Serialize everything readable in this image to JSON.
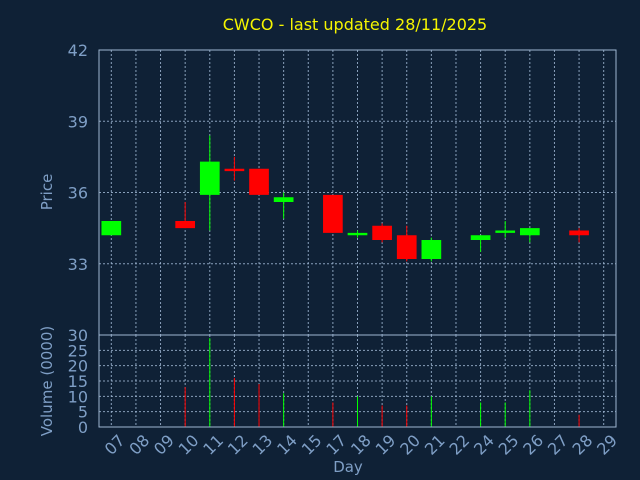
{
  "chart_data": {
    "type": "candlestick",
    "title": "CWCO - last updated 28/11/2025",
    "xlabel": "Day",
    "price_panel": {
      "ylabel": "Price",
      "ylim": [
        30,
        42
      ],
      "yticks": [
        "30",
        "33",
        "36",
        "39",
        "42"
      ],
      "grid": true
    },
    "volume_panel": {
      "ylabel": "Volume (0000)",
      "ylim": [
        0,
        30
      ],
      "yticks": [
        "0",
        "5",
        "10",
        "15",
        "20",
        "25"
      ],
      "grid": true
    },
    "x_ticks": [
      "07",
      "08",
      "09",
      "10",
      "11",
      "12",
      "13",
      "14",
      "15",
      "17",
      "18",
      "19",
      "20",
      "21",
      "22",
      "24",
      "25",
      "26",
      "27",
      "28",
      "29"
    ],
    "candles": [
      {
        "day": "07",
        "open": 34.2,
        "high": 34.8,
        "low": 34.2,
        "close": 34.8,
        "volume": 0
      },
      {
        "day": "10",
        "open": 34.8,
        "high": 35.6,
        "low": 34.5,
        "close": 34.5,
        "volume": 13
      },
      {
        "day": "11",
        "open": 35.9,
        "high": 38.4,
        "low": 34.4,
        "close": 37.3,
        "volume": 29
      },
      {
        "day": "12",
        "open": 37.0,
        "high": 37.5,
        "low": 36.5,
        "close": 36.9,
        "volume": 16
      },
      {
        "day": "13",
        "open": 37.0,
        "high": 37.0,
        "low": 35.9,
        "close": 35.9,
        "volume": 14
      },
      {
        "day": "14",
        "open": 35.6,
        "high": 36.0,
        "low": 34.9,
        "close": 35.8,
        "volume": 11
      },
      {
        "day": "17",
        "open": 35.9,
        "high": 35.9,
        "low": 34.3,
        "close": 34.3,
        "volume": 8
      },
      {
        "day": "18",
        "open": 34.2,
        "high": 34.4,
        "low": 34.1,
        "close": 34.3,
        "volume": 10
      },
      {
        "day": "19",
        "open": 34.6,
        "high": 34.7,
        "low": 33.9,
        "close": 34.0,
        "volume": 7
      },
      {
        "day": "20",
        "open": 34.2,
        "high": 34.6,
        "low": 33.1,
        "close": 33.2,
        "volume": 7
      },
      {
        "day": "21",
        "open": 33.2,
        "high": 34.1,
        "low": 33.1,
        "close": 34.0,
        "volume": 10
      },
      {
        "day": "24",
        "open": 34.0,
        "high": 34.2,
        "low": 33.5,
        "close": 34.2,
        "volume": 8
      },
      {
        "day": "25",
        "open": 34.3,
        "high": 34.8,
        "low": 34.1,
        "close": 34.4,
        "volume": 8
      },
      {
        "day": "26",
        "open": 34.2,
        "high": 34.5,
        "low": 33.9,
        "close": 34.5,
        "volume": 12
      },
      {
        "day": "28",
        "open": 34.4,
        "high": 34.5,
        "low": 33.9,
        "close": 34.2,
        "volume": 4
      }
    ],
    "colors": {
      "up": "#00ff00",
      "down": "#ff0000",
      "background": "#0f2136",
      "frame": "#9fb7d3",
      "title": "#f5f500",
      "axis_text": "#7f9fc6"
    }
  }
}
